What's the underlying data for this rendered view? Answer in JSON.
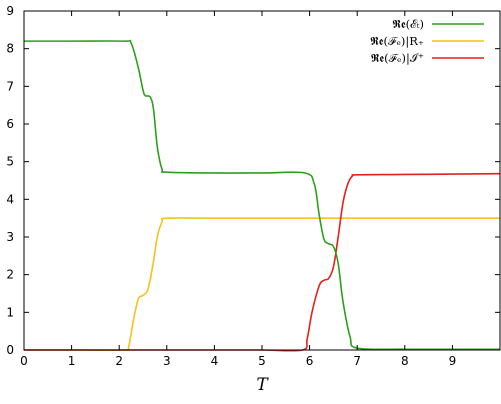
{
  "chart_data": {
    "type": "line",
    "title": "",
    "xlabel": "T",
    "ylabel": "",
    "xlim": [
      0,
      10
    ],
    "ylim": [
      0,
      9
    ],
    "xticks": [
      "0",
      "1",
      "2",
      "3",
      "4",
      "5",
      "6",
      "7",
      "8",
      "9"
    ],
    "yticks": [
      "0",
      "1",
      "2",
      "3",
      "4",
      "5",
      "6",
      "7",
      "8",
      "9"
    ],
    "grid": false,
    "legend_position": "top-right",
    "series": [
      {
        "name": "𝕽𝖊(ℰₜ)",
        "color": "#2ca01c",
        "x": [
          0,
          1,
          2.1,
          2.25,
          2.4,
          2.5,
          2.55,
          2.65,
          2.72,
          2.8,
          2.9,
          3.0,
          4,
          5,
          5.9,
          6.1,
          6.2,
          6.3,
          6.4,
          6.5,
          6.6,
          6.7,
          6.85,
          7.0,
          8,
          9,
          10
        ],
        "y": [
          8.2,
          8.2,
          8.2,
          8.15,
          7.5,
          6.9,
          6.75,
          6.72,
          6.4,
          5.4,
          4.8,
          4.72,
          4.7,
          4.7,
          4.7,
          4.4,
          3.6,
          2.95,
          2.82,
          2.75,
          2.3,
          1.3,
          0.35,
          0.05,
          0.02,
          0.02,
          0.02
        ]
      },
      {
        "name": "𝕽𝖊(ℱₑ)|R₊",
        "color": "#f5c21a",
        "x": [
          0,
          1,
          2.1,
          2.2,
          2.3,
          2.4,
          2.5,
          2.6,
          2.7,
          2.8,
          2.9,
          3.0,
          4,
          5,
          6,
          7,
          8,
          9,
          10
        ],
        "y": [
          0,
          0,
          0,
          0.1,
          0.8,
          1.35,
          1.45,
          1.6,
          2.2,
          3.0,
          3.4,
          3.5,
          3.5,
          3.5,
          3.5,
          3.5,
          3.5,
          3.5,
          3.5
        ]
      },
      {
        "name": "𝕽𝖊(ℱₑ)|ℐ⁺",
        "color": "#e3201b",
        "x": [
          0,
          1,
          2,
          3,
          4,
          5,
          5.85,
          5.95,
          6.05,
          6.2,
          6.3,
          6.4,
          6.5,
          6.6,
          6.7,
          6.8,
          6.9,
          7.0,
          8,
          9,
          10
        ],
        "y": [
          0,
          0,
          0,
          0,
          0,
          0,
          0,
          0.3,
          1.0,
          1.7,
          1.85,
          1.9,
          2.2,
          3.0,
          3.9,
          4.4,
          4.62,
          4.65,
          4.66,
          4.67,
          4.68
        ]
      }
    ]
  }
}
